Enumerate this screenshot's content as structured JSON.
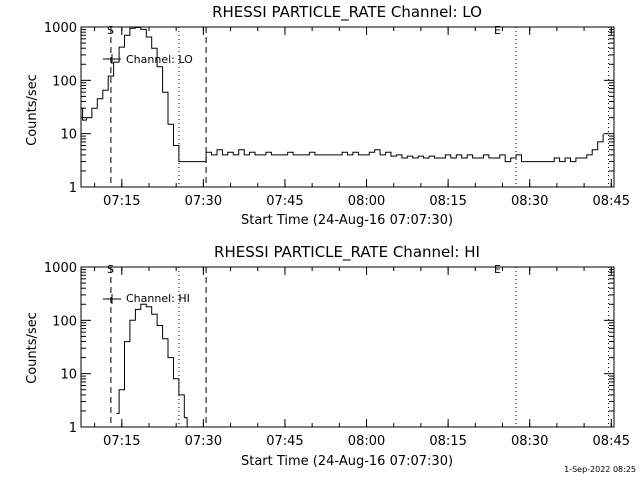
{
  "chart_data": [
    {
      "type": "line",
      "title": "RHESSI PARTICLE_RATE Channel: LO",
      "xlabel": "Start Time (24-Aug-16 07:07:30)",
      "ylabel": "Counts/sec",
      "yscale": "log",
      "ylim": [
        1,
        1000
      ],
      "xlim_minutes": [
        0,
        98
      ],
      "x_ticks": [
        "07:15",
        "07:30",
        "07:45",
        "08:00",
        "08:15",
        "08:30",
        "08:45"
      ],
      "y_ticks": [
        "1",
        "10",
        "100",
        "1000"
      ],
      "legend": "Channel: LO",
      "legend_position": "upper-left",
      "markers": {
        "start_label": "S",
        "end_label": "E"
      },
      "series": [
        {
          "name": "Channel: LO",
          "x": [
            0,
            0.3,
            1,
            2,
            3,
            4,
            5,
            6,
            7,
            8,
            9,
            10,
            11,
            12,
            13,
            14,
            15,
            16,
            17,
            18,
            19,
            20,
            21,
            22,
            23,
            24,
            25,
            26,
            27,
            28,
            29,
            30,
            31,
            32,
            33,
            34,
            35,
            36,
            37,
            38,
            39,
            40,
            41,
            42,
            43,
            44,
            45,
            46,
            47,
            48,
            49,
            50,
            51,
            52,
            53,
            54,
            55,
            56,
            57,
            58,
            59,
            60,
            61,
            62,
            63,
            64,
            65,
            66,
            67,
            68,
            69,
            70,
            71,
            72,
            73,
            74,
            75,
            76,
            77,
            78,
            79,
            80,
            81,
            82,
            83,
            84,
            85,
            86,
            87,
            88,
            89,
            90,
            91,
            92,
            93,
            94,
            95,
            96
          ],
          "y": [
            30,
            18,
            20,
            30,
            45,
            65,
            120,
            220,
            420,
            700,
            950,
            980,
            900,
            650,
            400,
            180,
            60,
            15,
            6,
            3,
            3,
            3,
            3,
            3,
            4.5,
            4,
            5,
            4,
            4.5,
            4,
            5,
            4,
            4.5,
            4,
            4,
            4.5,
            4,
            4,
            4,
            4.5,
            4,
            4,
            4,
            4.5,
            4,
            4,
            4,
            4,
            4,
            4.5,
            4,
            4.5,
            4,
            4,
            4.5,
            5,
            4,
            4.5,
            3.8,
            4,
            3.5,
            3.8,
            3.5,
            3.8,
            3.5,
            3.8,
            3.5,
            3.5,
            4,
            3.5,
            4,
            3.5,
            4,
            3.5,
            3.5,
            4,
            3.5,
            3.5,
            4,
            3,
            3.5,
            4,
            3,
            3,
            3,
            3,
            3,
            3,
            3.5,
            3,
            3.5,
            3,
            3.5,
            3.5,
            4,
            5,
            7,
            10
          ]
        }
      ]
    },
    {
      "type": "line",
      "title": "RHESSI PARTICLE_RATE Channel: HI",
      "xlabel": "Start Time (24-Aug-16 07:07:30)",
      "ylabel": "Counts/sec",
      "yscale": "log",
      "ylim": [
        1,
        1000
      ],
      "xlim_minutes": [
        0,
        98
      ],
      "x_ticks": [
        "07:15",
        "07:30",
        "07:45",
        "08:00",
        "08:15",
        "08:30",
        "08:45"
      ],
      "y_ticks": [
        "1",
        "10",
        "100",
        "1000"
      ],
      "legend": "Channel: HI",
      "legend_position": "upper-left",
      "markers": {
        "start_label": "S",
        "end_label": "E"
      },
      "series": [
        {
          "name": "Channel: HI",
          "x": [
            6.5,
            7,
            8,
            9,
            10,
            11,
            12,
            13,
            14,
            15,
            16,
            17,
            18,
            19,
            19.5
          ],
          "y": [
            1.8,
            5,
            40,
            100,
            160,
            200,
            180,
            130,
            80,
            45,
            20,
            8,
            4,
            1.5,
            1
          ]
        }
      ]
    }
  ],
  "footer": {
    "timestamp": "1-Sep-2022 08:25"
  }
}
